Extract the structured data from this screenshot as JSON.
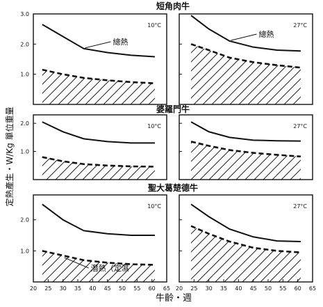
{
  "figure": {
    "ylabel": "定熱產生・W/Kg 單位重量",
    "xlabel": "牛齡・週"
  },
  "chart_data": [
    {
      "type": "line",
      "breed": "短角肉牛",
      "temp": "10°C",
      "x": [
        23,
        30,
        37,
        45,
        53,
        61
      ],
      "series": [
        {
          "name": "總熱",
          "values": [
            2.65,
            2.25,
            1.85,
            1.72,
            1.63,
            1.58
          ],
          "style": "solid"
        },
        {
          "name": "",
          "values": [
            1.15,
            1.0,
            0.88,
            0.8,
            0.74,
            0.7
          ],
          "style": "dashed"
        }
      ],
      "xlim": [
        20,
        65
      ],
      "ylim": [
        0,
        3.0
      ],
      "yticks": [
        "1.0",
        "2.0",
        "3.0"
      ],
      "hatched": true
    },
    {
      "type": "line",
      "breed": "短角肉牛",
      "temp": "27°C",
      "x": [
        24,
        30,
        37,
        45,
        53,
        61
      ],
      "series": [
        {
          "name": "總熱",
          "values": [
            2.95,
            2.5,
            2.1,
            1.9,
            1.8,
            1.77
          ],
          "style": "solid"
        },
        {
          "name": "",
          "values": [
            2.0,
            1.8,
            1.55,
            1.4,
            1.3,
            1.22
          ],
          "style": "dashed"
        }
      ],
      "xlim": [
        20,
        65
      ],
      "ylim": [
        0,
        3.0
      ],
      "hatched": true
    },
    {
      "type": "line",
      "breed": "婆羅門牛",
      "temp": "10°C",
      "x": [
        23,
        30,
        37,
        45,
        53,
        61
      ],
      "series": [
        {
          "name": "",
          "values": [
            2.05,
            1.7,
            1.45,
            1.35,
            1.3,
            1.3
          ],
          "style": "solid"
        },
        {
          "name": "",
          "values": [
            0.8,
            0.65,
            0.55,
            0.5,
            0.47,
            0.46
          ],
          "style": "dashed"
        }
      ],
      "xlim": [
        20,
        65
      ],
      "ylim": [
        0,
        2.3
      ],
      "yticks": [
        "1.0",
        "2.0"
      ],
      "hatched": true
    },
    {
      "type": "line",
      "breed": "婆羅門牛",
      "temp": "27°C",
      "x": [
        24,
        30,
        37,
        45,
        53,
        61
      ],
      "series": [
        {
          "name": "",
          "values": [
            2.05,
            1.7,
            1.5,
            1.4,
            1.38,
            1.37
          ],
          "style": "solid"
        },
        {
          "name": "",
          "values": [
            1.35,
            1.2,
            1.05,
            0.95,
            0.88,
            0.82
          ],
          "style": "dashed"
        }
      ],
      "xlim": [
        20,
        65
      ],
      "ylim": [
        0,
        2.3
      ],
      "hatched": true
    },
    {
      "type": "line",
      "breed": "聖大葛楚德牛",
      "temp": "10°C",
      "x": [
        23,
        30,
        37,
        45,
        53,
        61
      ],
      "series": [
        {
          "name": "",
          "values": [
            2.5,
            2.0,
            1.65,
            1.55,
            1.5,
            1.5
          ],
          "style": "solid"
        },
        {
          "name": "潛熱（定濕",
          "values": [
            1.0,
            0.85,
            0.7,
            0.62,
            0.57,
            0.55
          ],
          "style": "dashed"
        }
      ],
      "xlim": [
        20,
        65
      ],
      "ylim": [
        0,
        2.8
      ],
      "yticks": [
        "1.0",
        "2.0"
      ],
      "hatched": true
    },
    {
      "type": "line",
      "breed": "聖大葛楚德牛",
      "temp": "27°C",
      "x": [
        24,
        30,
        37,
        45,
        53,
        61
      ],
      "series": [
        {
          "name": "",
          "values": [
            2.5,
            2.1,
            1.7,
            1.45,
            1.32,
            1.3
          ],
          "style": "solid"
        },
        {
          "name": "",
          "values": [
            1.8,
            1.55,
            1.3,
            1.1,
            1.0,
            0.95
          ],
          "style": "dashed"
        }
      ],
      "xlim": [
        20,
        65
      ],
      "ylim": [
        0,
        2.8
      ],
      "hatched": true
    }
  ],
  "xticks": [
    {
      "value": 20,
      "label": "20"
    },
    {
      "value": 25,
      "label": "25"
    },
    {
      "value": 30,
      "label": "30"
    },
    {
      "value": 35,
      "label": "35"
    },
    {
      "value": 40,
      "label": "40"
    },
    {
      "value": 45,
      "label": "45"
    },
    {
      "value": 50,
      "label": "50"
    },
    {
      "value": 55,
      "label": "55"
    },
    {
      "value": 60,
      "label": "60"
    },
    {
      "value": 65,
      "label": "65"
    }
  ]
}
